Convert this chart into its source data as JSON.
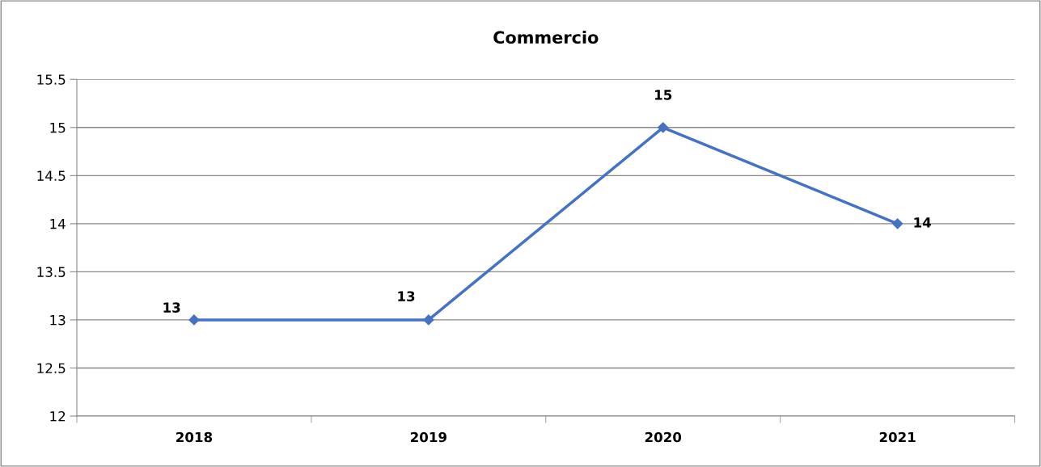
{
  "chart_data": {
    "type": "line",
    "title": "Commercio",
    "categories": [
      "2018",
      "2019",
      "2020",
      "2021"
    ],
    "series": [
      {
        "color": "#4472c4",
        "values": [
          13,
          13,
          15,
          14
        ]
      }
    ],
    "ylim": [
      12,
      15.5
    ],
    "yticks": [
      12,
      12.5,
      13,
      13.5,
      14,
      14.5,
      15,
      15.5
    ],
    "grid": "y",
    "marker": "diamond",
    "line_style": "solid",
    "data_labels": true,
    "legend": false
  }
}
